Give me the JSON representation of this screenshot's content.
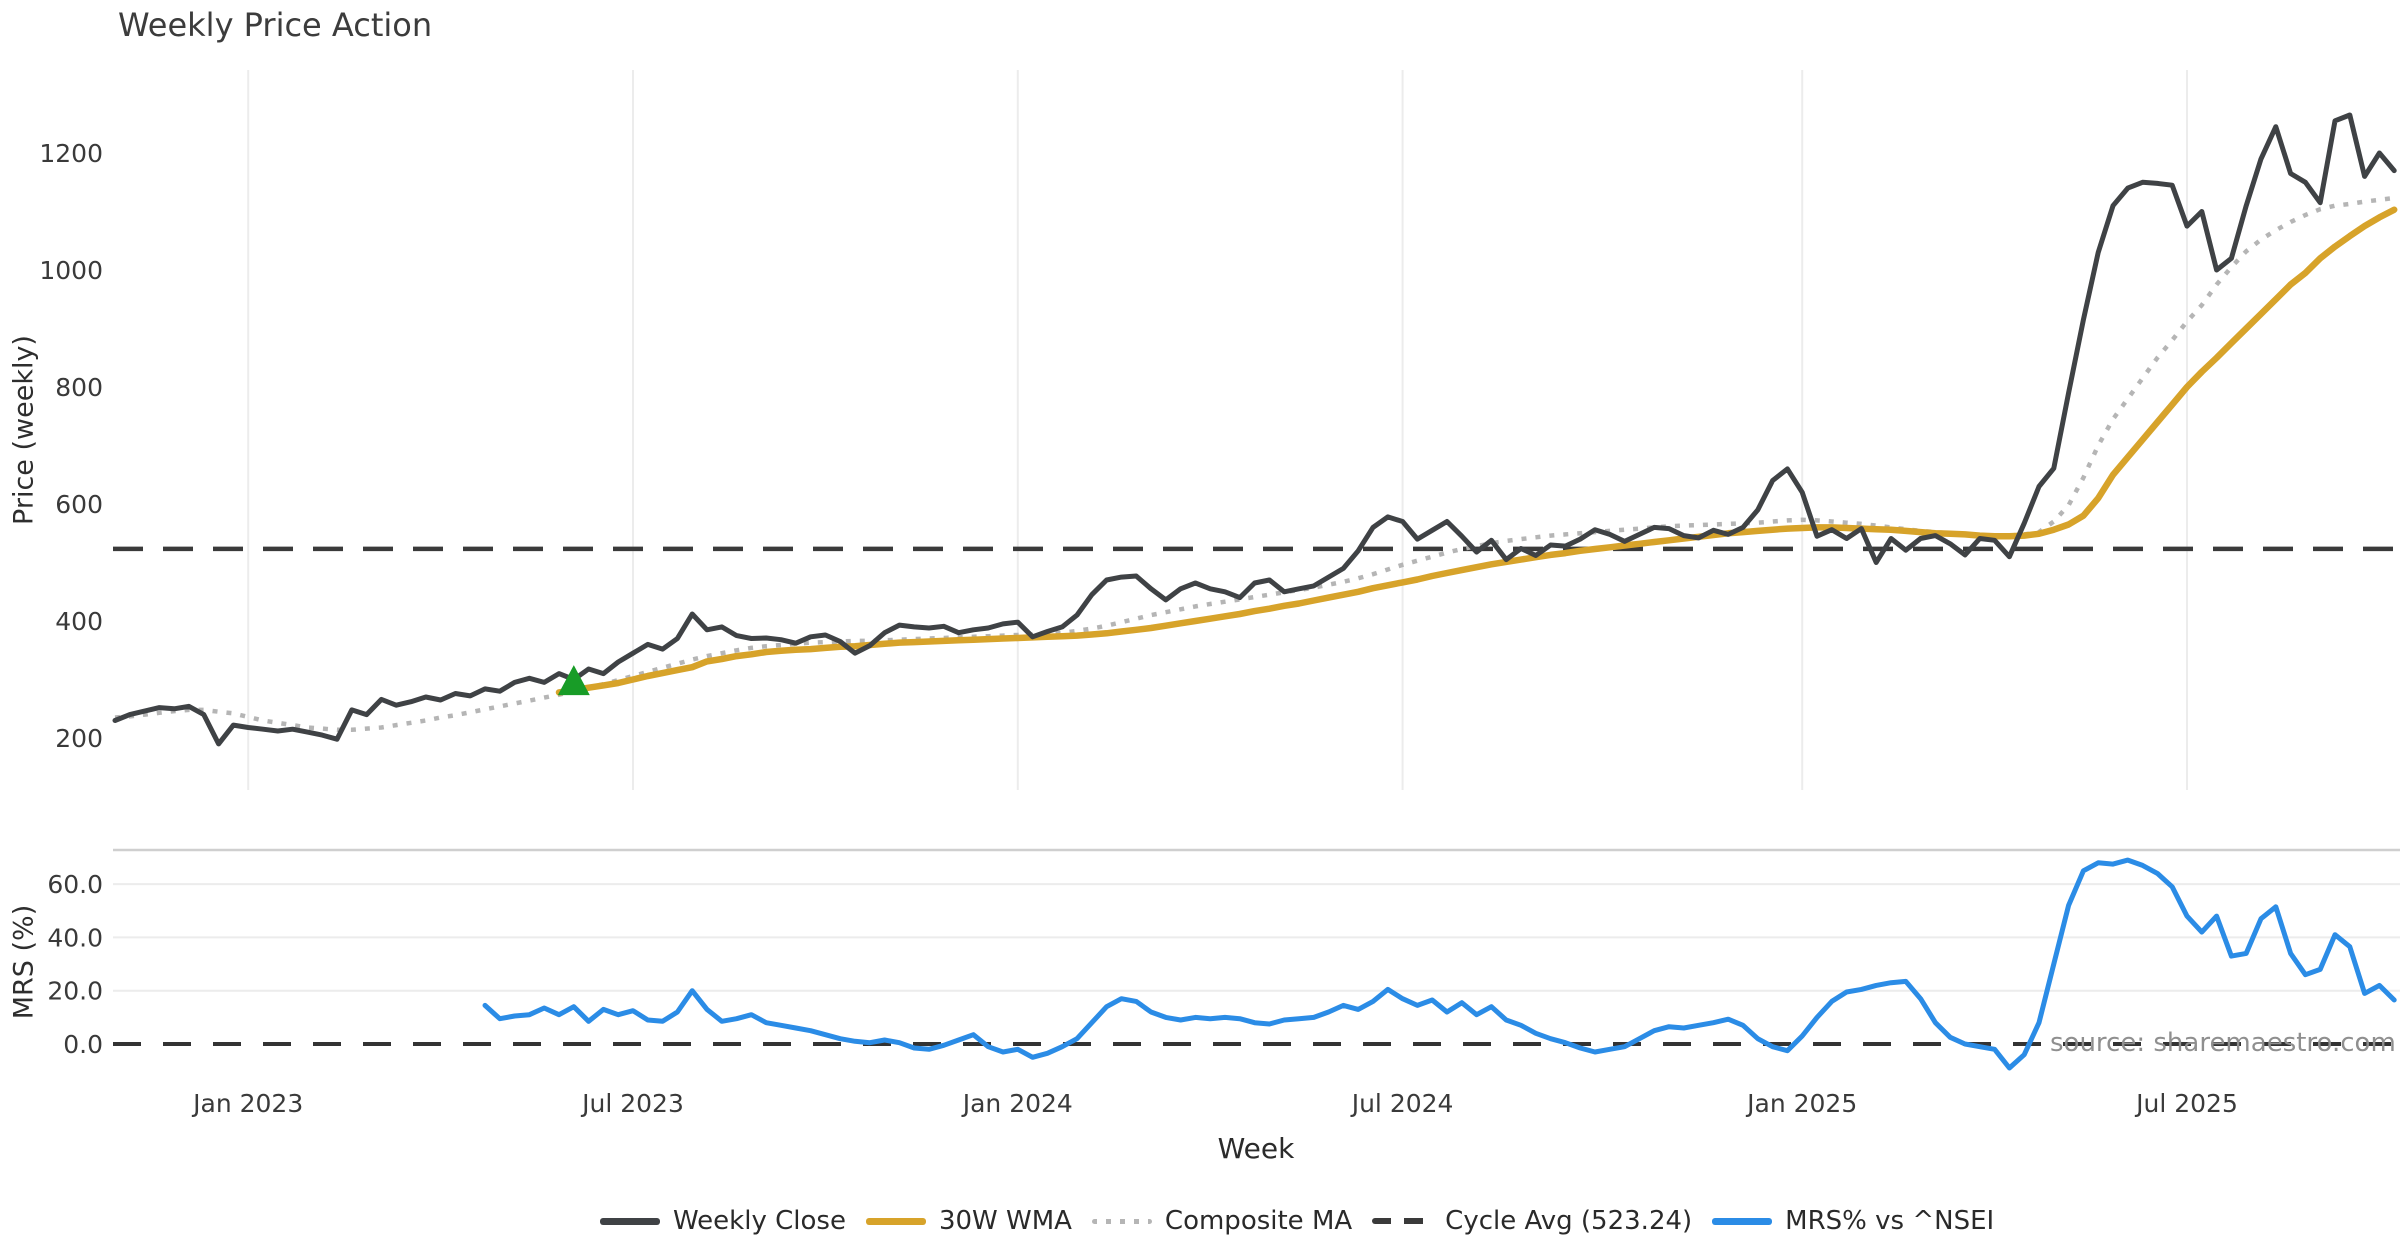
{
  "title": "Weekly Price Action",
  "source_note": "source: sharemaestro.com",
  "x_axis": {
    "label": "Week",
    "tick_labels": [
      "Jan 2023",
      "Jul 2023",
      "Jan 2024",
      "Jul 2024",
      "Jan 2025",
      "Jul 2025"
    ],
    "tick_weeks": [
      9,
      35,
      61,
      87,
      114,
      140
    ]
  },
  "colors": {
    "weekly_close": "#3f4245",
    "wma_30w": "#d7a32a",
    "composite_ma": "#b5b5b5",
    "cycle_avg": "#3a3a3a",
    "mrs_line": "#2b8ce6",
    "buy_marker": "#189c27",
    "gridline": "#ececec",
    "panel_border": "#cfcfcf",
    "tick_text": "#3a3a3a"
  },
  "legend": {
    "items": [
      {
        "label": "Weekly Close",
        "swatch": "solid",
        "color": "#3f4245"
      },
      {
        "label": "30W WMA",
        "swatch": "solid",
        "color": "#d7a32a"
      },
      {
        "label": "Composite MA",
        "swatch": "dotted",
        "color": "#b5b5b5"
      },
      {
        "label": "Cycle Avg (523.24)",
        "swatch": "dashed",
        "color": "#3a3a3a"
      },
      {
        "label": "MRS% vs ^NSEI",
        "swatch": "solid",
        "color": "#2b8ce6"
      }
    ]
  },
  "chart_data": [
    {
      "type": "line",
      "panel": "price",
      "title": "Weekly Price Action",
      "xlabel": "Week",
      "ylabel": "Price (weekly)",
      "y_ticks": [
        200,
        400,
        600,
        800,
        1000,
        1200
      ],
      "ylim": [
        111,
        1342
      ],
      "grid": "vertical-only",
      "cycle_avg": 523.24,
      "buy_marker": {
        "shape": "triangle-up",
        "week": 31,
        "price": 299
      },
      "series": [
        {
          "name": "Weekly Close",
          "start_week": 0,
          "values": [
            230,
            240,
            246,
            252,
            250,
            254,
            240,
            190,
            222,
            218,
            215,
            212,
            215,
            210,
            205,
            198,
            248,
            240,
            266,
            256,
            262,
            270,
            265,
            276,
            272,
            284,
            280,
            295,
            302,
            295,
            310,
            300,
            318,
            310,
            330,
            345,
            360,
            352,
            370,
            412,
            385,
            390,
            375,
            370,
            371,
            368,
            362,
            373,
            376,
            365,
            345,
            358,
            380,
            393,
            390,
            388,
            391,
            380,
            385,
            388,
            395,
            398,
            373,
            382,
            390,
            410,
            445,
            470,
            475,
            477,
            455,
            436,
            455,
            465,
            455,
            450,
            440,
            465,
            470,
            450,
            455,
            460,
            475,
            490,
            520,
            560,
            578,
            570,
            540,
            555,
            570,
            545,
            518,
            538,
            505,
            524,
            512,
            530,
            528,
            540,
            556,
            548,
            536,
            548,
            560,
            558,
            546,
            542,
            555,
            548,
            560,
            590,
            640,
            660,
            620,
            545,
            556,
            541,
            558,
            500,
            541,
            521,
            541,
            546,
            532,
            513,
            541,
            538,
            510,
            567,
            630,
            661,
            790,
            915,
            1030,
            1110,
            1140,
            1150,
            1148,
            1145,
            1075,
            1100,
            1000,
            1020,
            1110,
            1190,
            1245,
            1165,
            1150,
            1115,
            1255,
            1265,
            1160,
            1200,
            1170
          ]
        },
        {
          "name": "30W WMA",
          "start_week": 30,
          "values": [
            278,
            282,
            286,
            290,
            294,
            300,
            306,
            311,
            316,
            321,
            331,
            335,
            340,
            343,
            347,
            349,
            351,
            352,
            354,
            356,
            357,
            359,
            361,
            363,
            364,
            365,
            366,
            367,
            368,
            369,
            370,
            371,
            372,
            373,
            374,
            375,
            377,
            379,
            382,
            385,
            388,
            392,
            396,
            400,
            404,
            408,
            412,
            417,
            421,
            426,
            430,
            435,
            440,
            445,
            450,
            456,
            461,
            466,
            471,
            477,
            482,
            487,
            492,
            497,
            501,
            505,
            509,
            513,
            516,
            520,
            523,
            526,
            529,
            532,
            535,
            538,
            541,
            544,
            547,
            550,
            552,
            554,
            556,
            558,
            559,
            560,
            560,
            559,
            558,
            557,
            556,
            554,
            552,
            550,
            549,
            548,
            546,
            545,
            545,
            546,
            549,
            556,
            565,
            580,
            610,
            650,
            680,
            710,
            740,
            770,
            800,
            826,
            850,
            875,
            900,
            925,
            950,
            975,
            995,
            1020,
            1040,
            1058,
            1075,
            1090,
            1103
          ]
        },
        {
          "name": "Composite MA",
          "start_week": 0,
          "values": [
            235,
            237,
            240,
            243,
            246,
            248,
            248,
            245,
            242,
            236,
            230,
            226,
            222,
            218,
            216,
            214,
            214,
            216,
            218,
            222,
            226,
            230,
            235,
            239,
            244,
            249,
            254,
            259,
            264,
            269,
            274,
            280,
            286,
            292,
            299,
            306,
            313,
            320,
            327,
            334,
            340,
            345,
            350,
            354,
            357,
            359,
            361,
            363,
            364,
            365,
            366,
            366,
            367,
            368,
            369,
            370,
            371,
            372,
            373,
            374,
            375,
            376,
            377,
            378,
            380,
            383,
            387,
            392,
            398,
            404,
            410,
            415,
            420,
            425,
            429,
            433,
            437,
            441,
            445,
            449,
            453,
            457,
            462,
            467,
            473,
            480,
            488,
            496,
            503,
            510,
            517,
            523,
            528,
            533,
            537,
            540,
            543,
            546,
            548,
            550,
            552,
            554,
            556,
            558,
            560,
            562,
            563,
            564,
            565,
            566,
            567,
            568,
            570,
            572,
            573,
            572,
            570,
            568,
            566,
            563,
            560,
            557,
            554,
            552,
            550,
            548,
            547,
            546,
            546,
            548,
            552,
            570,
            598,
            645,
            700,
            745,
            780,
            815,
            850,
            880,
            912,
            940,
            975,
            1005,
            1032,
            1052,
            1068,
            1082,
            1094,
            1104,
            1110,
            1113,
            1117,
            1120,
            1123
          ]
        }
      ]
    },
    {
      "type": "line",
      "panel": "mrs",
      "ylabel": "MRS (%)",
      "y_ticks": [
        0,
        20,
        40,
        60
      ],
      "y_tick_labels": [
        "0.0",
        "20.0",
        "40.0",
        "60.0"
      ],
      "ylim": [
        -11.6,
        72.8
      ],
      "zero_line": 0,
      "series": [
        {
          "name": "MRS% vs ^NSEI",
          "start_week": 25,
          "values": [
            14.5,
            9.5,
            10.5,
            11,
            13.5,
            11,
            14,
            8.5,
            13,
            11,
            12.5,
            9,
            8.5,
            12,
            20,
            13,
            8.5,
            9.5,
            11,
            8,
            7,
            6,
            5,
            3.5,
            2,
            1,
            0.5,
            1.5,
            0.5,
            -1.5,
            -2,
            -0.5,
            1.5,
            3.5,
            -1,
            -3,
            -2,
            -5,
            -3.5,
            -1,
            2,
            8,
            14,
            17,
            16,
            12,
            10,
            9,
            10,
            9.5,
            10,
            9.5,
            8,
            7.5,
            9,
            9.5,
            10,
            12,
            14.5,
            13,
            16,
            20.5,
            17,
            14.5,
            16.5,
            12,
            15.5,
            11,
            14,
            9,
            7,
            4,
            2,
            0.5,
            -1.5,
            -3,
            -2,
            -1,
            2,
            5,
            6.5,
            6,
            7,
            8,
            9.3,
            7,
            2,
            -1,
            -2.5,
            3,
            10,
            16,
            19.5,
            20.5,
            22,
            23,
            23.5,
            17,
            8,
            2.5,
            0,
            -1,
            -2,
            -9,
            -4,
            8,
            30,
            52,
            65,
            68,
            67.5,
            69,
            67,
            64,
            59,
            48,
            42,
            48,
            33,
            34,
            47,
            51.5,
            34,
            26,
            28,
            41,
            36.5,
            19,
            22,
            16.5
          ]
        }
      ]
    }
  ]
}
